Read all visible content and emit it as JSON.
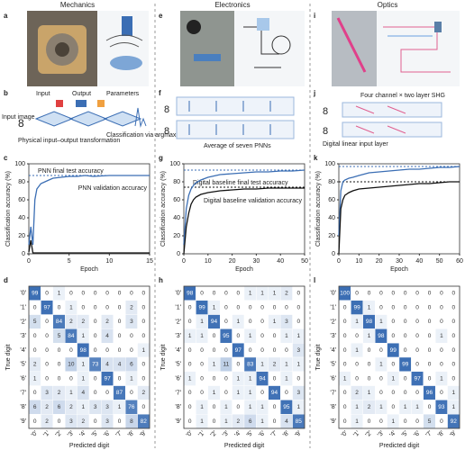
{
  "columns": [
    {
      "title": "Mechanics",
      "photo_label": "a",
      "diagram_label": "b"
    },
    {
      "title": "Electronics",
      "photo_label": "e",
      "diagram_label": "f"
    },
    {
      "title": "Optics",
      "photo_label": "i",
      "diagram_label": "j"
    }
  ],
  "diagrams": {
    "b": {
      "input": "Input",
      "output": "Output",
      "parameters": "Parameters",
      "input_image": "Input image",
      "transformation": "Physical input–output transformation",
      "classification": "Classification via argmax"
    },
    "f": {
      "average": "Average of seven PNNs"
    },
    "j": {
      "shg": "Four channel × two layer SHG",
      "input_layer": "Digital linear input layer"
    }
  },
  "chart_data": [
    {
      "type": "line",
      "panel": "c",
      "xlabel": "Epoch",
      "ylabel": "Classification accuracy (%)",
      "xlim": [
        0,
        15
      ],
      "xticks": [
        0,
        5,
        10,
        15
      ],
      "ylim": [
        0,
        100
      ],
      "yticks": [
        0,
        20,
        40,
        60,
        80,
        100
      ],
      "series": [
        {
          "name": "PNN validation accuracy",
          "color": "#3b6eb4",
          "x": [
            0,
            0.25,
            0.5,
            0.75,
            1,
            1.5,
            2,
            2.5,
            3,
            4,
            5,
            6,
            7,
            8,
            10,
            12,
            15
          ],
          "values": [
            10,
            30,
            10,
            60,
            72,
            78,
            80,
            82,
            84,
            85,
            86,
            86,
            87,
            86,
            87,
            87,
            87
          ]
        },
        {
          "color": "#111111",
          "x": [
            0,
            0.25,
            0.5,
            0.75,
            1,
            1.5,
            2,
            2.5,
            3,
            4,
            5,
            6,
            7,
            8,
            10,
            12,
            15
          ],
          "values": [
            2,
            15,
            1,
            1,
            1,
            1,
            1,
            1,
            1,
            1,
            1,
            1,
            1,
            1,
            1,
            1,
            1
          ]
        }
      ],
      "reference_lines": [
        {
          "label": "PNN final test accuracy",
          "value": 87,
          "color": "#3b6eb4"
        }
      ]
    },
    {
      "type": "line",
      "panel": "g",
      "xlabel": "Epoch",
      "ylabel": "Classification accuracy (%)",
      "xlim": [
        0,
        50
      ],
      "xticks": [
        0,
        10,
        20,
        30,
        40,
        50
      ],
      "ylim": [
        0,
        100
      ],
      "yticks": [
        0,
        20,
        40,
        60,
        80,
        100
      ],
      "series": [
        {
          "color": "#3b6eb4",
          "x": [
            0,
            1,
            2,
            3,
            4,
            5,
            7,
            10,
            15,
            20,
            25,
            30,
            35,
            40,
            45,
            50
          ],
          "values": [
            10,
            50,
            65,
            72,
            76,
            79,
            82,
            85,
            88,
            89,
            90,
            91,
            91,
            92,
            92,
            93
          ]
        },
        {
          "name": "Digital baseline validation accuracy",
          "color": "#111111",
          "x": [
            0,
            1,
            2,
            3,
            4,
            5,
            7,
            10,
            15,
            20,
            25,
            30,
            35,
            40,
            45,
            50
          ],
          "values": [
            0,
            30,
            45,
            55,
            60,
            63,
            66,
            68,
            70,
            71,
            72,
            72,
            73,
            73,
            73,
            73
          ]
        }
      ],
      "reference_lines": [
        {
          "value": 93,
          "color": "#3b6eb4"
        },
        {
          "label": "Digital baseline final test accuracy",
          "value": 74,
          "color": "#111111"
        }
      ]
    },
    {
      "type": "line",
      "panel": "k",
      "xlabel": "Epoch",
      "ylabel": "Classification accuracy (%)",
      "xlim": [
        0,
        60
      ],
      "xticks": [
        0,
        10,
        20,
        30,
        40,
        50,
        60
      ],
      "ylim": [
        0,
        100
      ],
      "yticks": [
        0,
        20,
        40,
        60,
        80,
        100
      ],
      "series": [
        {
          "color": "#3b6eb4",
          "x": [
            0,
            1,
            2,
            3,
            5,
            7,
            10,
            15,
            20,
            25,
            30,
            35,
            40,
            45,
            50,
            55,
            60
          ],
          "values": [
            20,
            70,
            80,
            82,
            84,
            85,
            87,
            90,
            91,
            92,
            93,
            94,
            94,
            95,
            96,
            96,
            97
          ]
        },
        {
          "color": "#111111",
          "x": [
            0,
            1,
            2,
            3,
            5,
            7,
            10,
            15,
            20,
            25,
            30,
            35,
            40,
            45,
            50,
            55,
            60
          ],
          "values": [
            0,
            50,
            60,
            65,
            68,
            70,
            72,
            73,
            74,
            75,
            76,
            77,
            78,
            78,
            79,
            80,
            80
          ]
        }
      ],
      "reference_lines": [
        {
          "value": 97,
          "color": "#3b6eb4"
        },
        {
          "value": 80,
          "color": "#111111"
        }
      ]
    },
    {
      "type": "heatmap",
      "panel": "d",
      "xlabel": "Predicted digit",
      "ylabel": "True digit",
      "color": "#3b6eb4",
      "categories": [
        "'0'",
        "'1'",
        "'2'",
        "'3'",
        "'4'",
        "'5'",
        "'6'",
        "'7'",
        "'8'",
        "'9'"
      ],
      "values": [
        [
          99,
          0,
          1,
          0,
          0,
          0,
          0,
          0,
          0,
          0
        ],
        [
          0,
          97,
          0,
          1,
          0,
          0,
          0,
          0,
          2,
          0
        ],
        [
          5,
          0,
          84,
          2,
          2,
          0,
          2,
          0,
          3,
          0
        ],
        [
          0,
          0,
          5,
          84,
          1,
          0,
          4,
          0,
          0,
          0
        ],
        [
          0,
          0,
          0,
          0,
          98,
          0,
          0,
          0,
          0,
          1
        ],
        [
          2,
          0,
          0,
          10,
          1,
          73,
          4,
          4,
          6,
          0
        ],
        [
          1,
          0,
          0,
          0,
          1,
          0,
          97,
          0,
          1,
          0
        ],
        [
          0,
          3,
          2,
          1,
          4,
          0,
          0,
          87,
          0,
          2
        ],
        [
          6,
          2,
          6,
          2,
          1,
          3,
          3,
          1,
          76,
          0
        ],
        [
          0,
          2,
          0,
          3,
          2,
          0,
          3,
          0,
          8,
          82
        ]
      ]
    },
    {
      "type": "heatmap",
      "panel": "h",
      "xlabel": "Predicted digit",
      "ylabel": "True digit",
      "color": "#3b6eb4",
      "categories": [
        "'0'",
        "'1'",
        "'2'",
        "'3'",
        "'4'",
        "'5'",
        "'6'",
        "'7'",
        "'8'",
        "'9'"
      ],
      "values": [
        [
          98,
          0,
          0,
          0,
          0,
          1,
          1,
          1,
          2,
          0
        ],
        [
          0,
          99,
          1,
          0,
          0,
          0,
          0,
          0,
          0,
          0
        ],
        [
          0,
          1,
          94,
          0,
          1,
          0,
          0,
          1,
          3,
          0
        ],
        [
          1,
          1,
          0,
          95,
          0,
          1,
          0,
          0,
          1,
          1
        ],
        [
          0,
          0,
          0,
          0,
          97,
          0,
          0,
          0,
          0,
          3
        ],
        [
          0,
          0,
          1,
          11,
          0,
          83,
          1,
          2,
          1,
          1
        ],
        [
          1,
          0,
          0,
          0,
          1,
          1,
          94,
          0,
          1,
          0
        ],
        [
          0,
          0,
          1,
          0,
          1,
          1,
          0,
          94,
          0,
          3
        ],
        [
          0,
          1,
          0,
          1,
          0,
          1,
          1,
          0,
          95,
          1
        ],
        [
          0,
          1,
          0,
          1,
          2,
          6,
          1,
          0,
          4,
          85
        ]
      ]
    },
    {
      "type": "heatmap",
      "panel": "l",
      "xlabel": "Predicted digit",
      "ylabel": "True digit",
      "color": "#3b6eb4",
      "categories": [
        "'0'",
        "'1'",
        "'2'",
        "'3'",
        "'4'",
        "'5'",
        "'6'",
        "'7'",
        "'8'",
        "'9'"
      ],
      "values": [
        [
          100,
          0,
          0,
          0,
          0,
          0,
          0,
          0,
          0,
          0
        ],
        [
          0,
          99,
          1,
          0,
          0,
          0,
          0,
          0,
          0,
          0
        ],
        [
          0,
          1,
          98,
          1,
          0,
          0,
          0,
          0,
          0,
          0
        ],
        [
          0,
          0,
          1,
          98,
          0,
          0,
          0,
          0,
          1,
          0
        ],
        [
          0,
          1,
          0,
          0,
          99,
          0,
          0,
          0,
          0,
          0
        ],
        [
          0,
          0,
          0,
          1,
          0,
          99,
          0,
          0,
          0,
          0
        ],
        [
          1,
          0,
          0,
          0,
          1,
          0,
          97,
          0,
          1,
          0
        ],
        [
          0,
          2,
          1,
          0,
          0,
          0,
          0,
          96,
          0,
          1
        ],
        [
          0,
          1,
          2,
          1,
          0,
          1,
          1,
          0,
          93,
          1
        ],
        [
          0,
          1,
          0,
          0,
          1,
          0,
          0,
          5,
          0,
          92
        ]
      ]
    }
  ]
}
